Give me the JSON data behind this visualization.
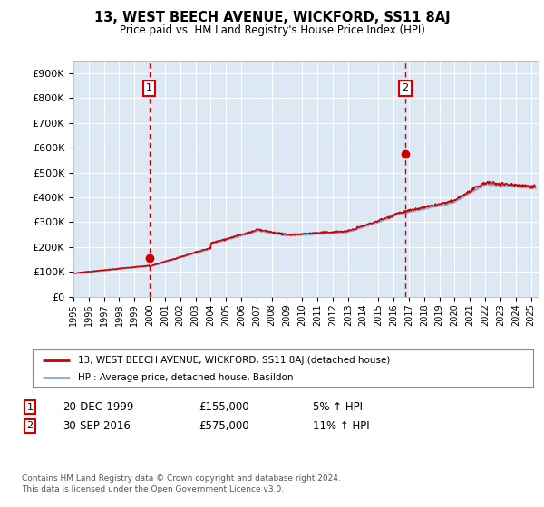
{
  "title": "13, WEST BEECH AVENUE, WICKFORD, SS11 8AJ",
  "subtitle": "Price paid vs. HM Land Registry's House Price Index (HPI)",
  "background_color": "#dde8f5",
  "plot_bg_color": "#dde8f5",
  "ylim": [
    0,
    950000
  ],
  "yticks": [
    0,
    100000,
    200000,
    300000,
    400000,
    500000,
    600000,
    700000,
    800000,
    900000
  ],
  "ytick_labels": [
    "£0",
    "£100K",
    "£200K",
    "£300K",
    "£400K",
    "£500K",
    "£600K",
    "£700K",
    "£800K",
    "£900K"
  ],
  "xlim_start": 1995.0,
  "xlim_end": 2025.5,
  "sale1_x": 1999.97,
  "sale1_y": 155000,
  "sale1_label": "1",
  "sale1_date": "20-DEC-1999",
  "sale1_price": "£155,000",
  "sale1_hpi": "5% ↑ HPI",
  "sale2_x": 2016.75,
  "sale2_y": 575000,
  "sale2_label": "2",
  "sale2_date": "30-SEP-2016",
  "sale2_price": "£575,000",
  "sale2_hpi": "11% ↑ HPI",
  "legend_label_red": "13, WEST BEECH AVENUE, WICKFORD, SS11 8AJ (detached house)",
  "legend_label_blue": "HPI: Average price, detached house, Basildon",
  "footnote": "Contains HM Land Registry data © Crown copyright and database right 2024.\nThis data is licensed under the Open Government Licence v3.0.",
  "red_line_color": "#cc0000",
  "blue_line_color": "#7bafd4",
  "vline_color": "#cc0000",
  "grid_color": "#ffffff",
  "box_color": "#cc0000"
}
